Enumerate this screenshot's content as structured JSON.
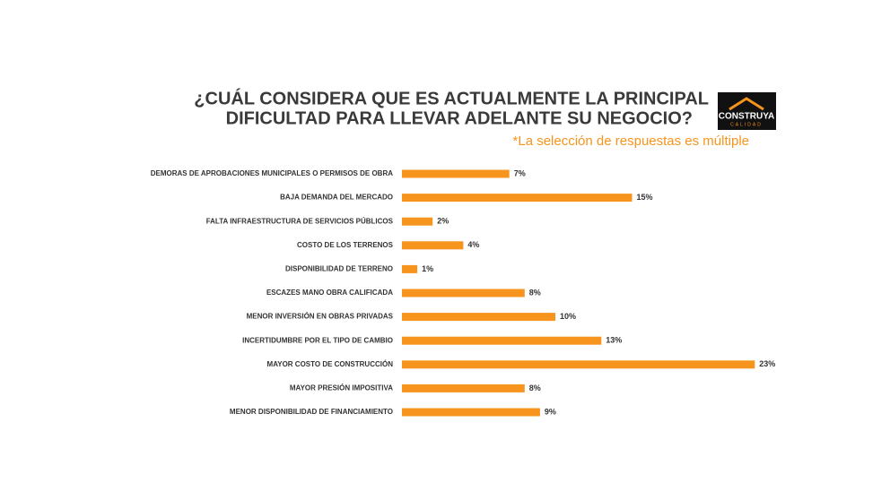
{
  "chart_data": {
    "type": "bar",
    "orientation": "horizontal",
    "title": [
      "¿CUÁL CONSIDERA QUE ES ACTUALMENTE LA PRINCIPAL",
      "DIFICULTAD PARA LLEVAR ADELANTE SU NEGOCIO?"
    ],
    "subtitle": "*La selección de respuestas es múltiple",
    "logo": {
      "name": "CONSTRUYA",
      "tagline": "CALIDAD"
    },
    "categories": [
      "DEMORAS DE APROBACIONES MUNICIPALES O PERMISOS DE OBRA",
      "BAJA DEMANDA DEL MERCADO",
      "FALTA INFRAESTRUCTURA DE SERVICIOS PÚBLICOS",
      "COSTO DE LOS TERRENOS",
      "DISPONIBILIDAD DE TERRENO",
      "ESCAZES MANO OBRA CALIFICADA",
      "MENOR INVERSIÓN EN OBRAS PRIVADAS",
      "INCERTIDUMBRE POR EL TIPO DE CAMBIO",
      "MAYOR COSTO DE CONSTRUCCIÓN",
      "MAYOR PRESIÓN IMPOSITIVA",
      "MENOR DISPONIBILIDAD DE FINANCIAMIENTO"
    ],
    "values": [
      7,
      15,
      2,
      4,
      1,
      8,
      10,
      13,
      23,
      8,
      9
    ],
    "value_labels": [
      "7%",
      "15%",
      "2%",
      "4%",
      "1%",
      "8%",
      "10%",
      "13%",
      "23%",
      "8%",
      "9%"
    ],
    "color": "#f7941d"
  }
}
